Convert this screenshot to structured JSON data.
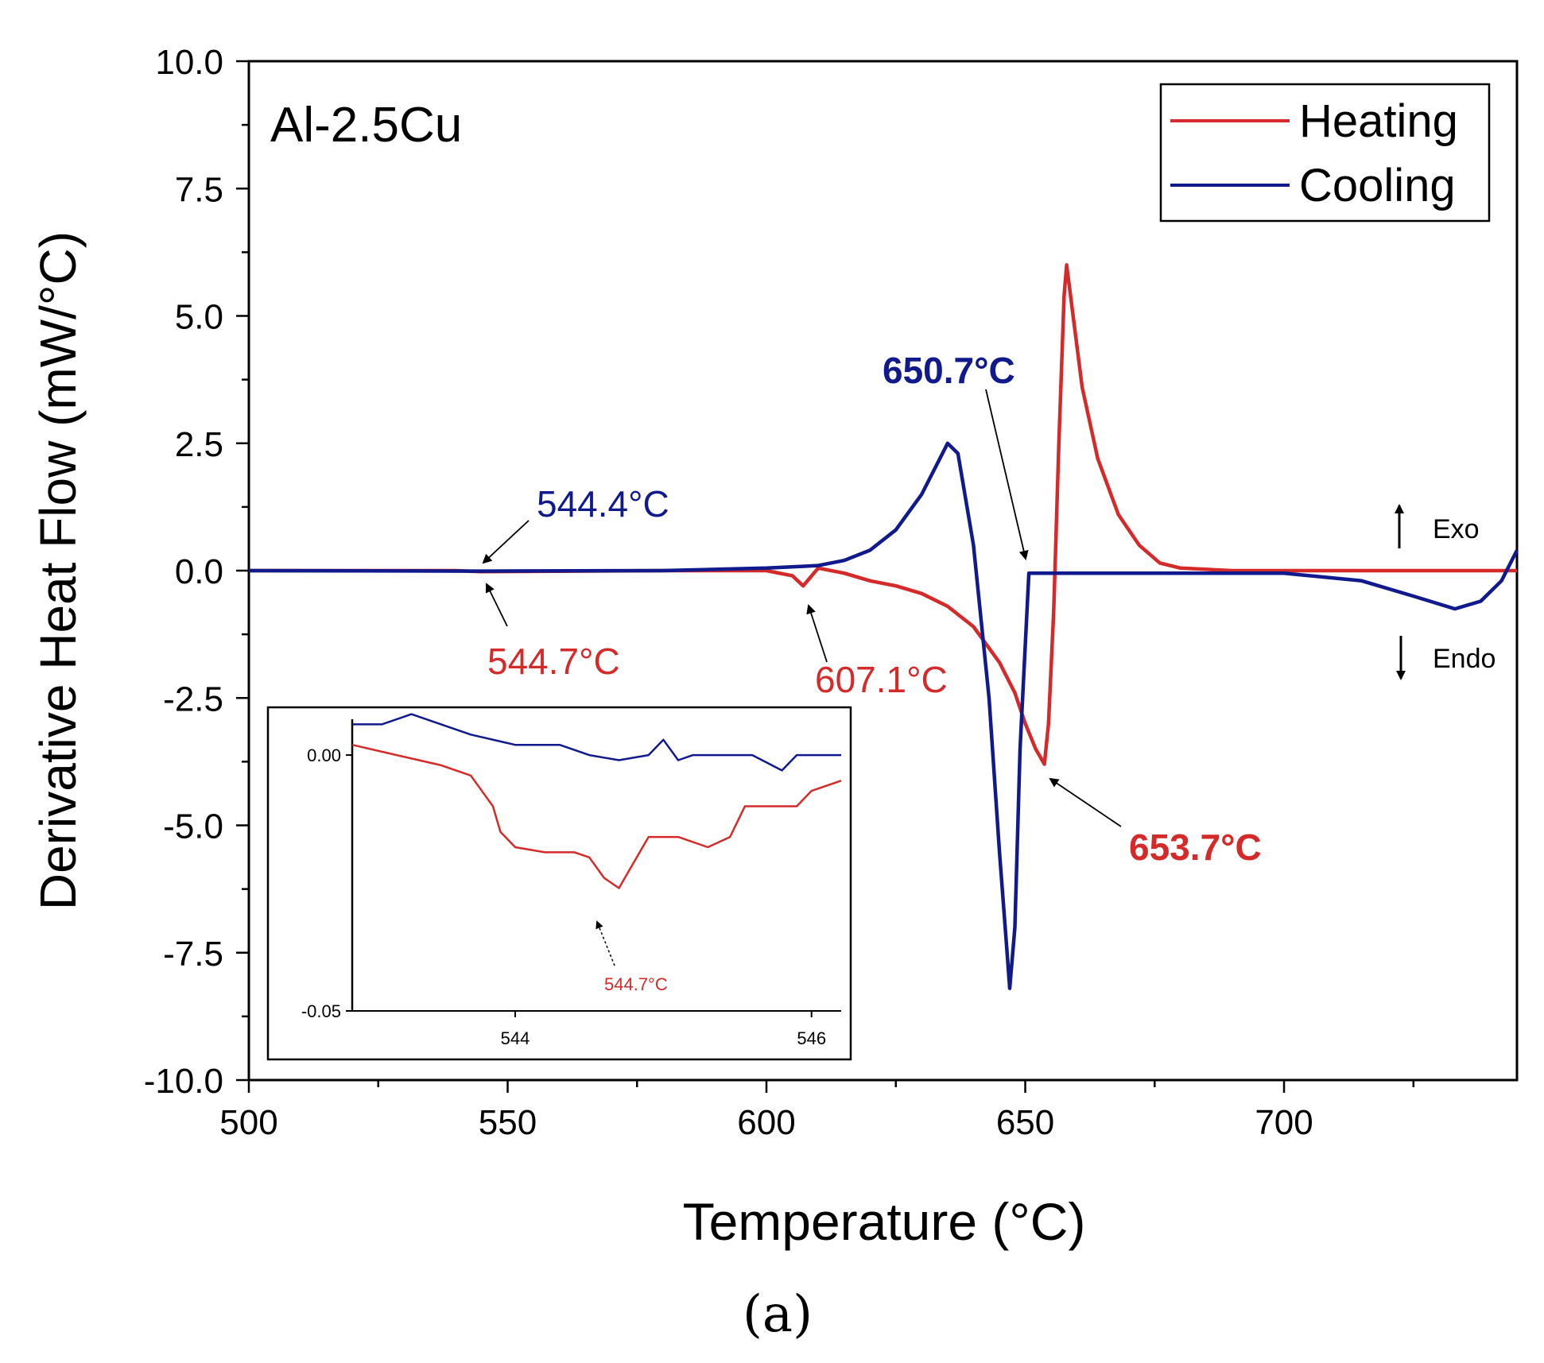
{
  "chart_data": {
    "type": "line",
    "sample_label": "Al-2.5Cu",
    "xlabel": "Temperature (°C)",
    "ylabel": "Derivative Heat Flow (mW/°C)",
    "xlim": [
      500,
      745
    ],
    "ylim": [
      -10,
      10
    ],
    "x_ticks": [
      500,
      550,
      600,
      650,
      700
    ],
    "x_tick_labels": [
      "500",
      "550",
      "600",
      "650",
      "700"
    ],
    "y_ticks": [
      10,
      7.5,
      5,
      2.5,
      0,
      -2.5,
      -5,
      -7.5,
      -10
    ],
    "y_tick_labels": [
      "10.0",
      "7.5",
      "5.0",
      "2.5",
      "0.0",
      "-2.5",
      "-5.0",
      "-7.5",
      "-10.0"
    ],
    "colors": {
      "heating": "#d42a2a",
      "cooling": "#101a8c"
    },
    "series": [
      {
        "name": "Heating",
        "color": "#d42a2a",
        "x": [
          500,
          540,
          544.7,
          580,
          600,
          605,
          607.1,
          610,
          615,
          620,
          625,
          630,
          635,
          640,
          645,
          648,
          650,
          652,
          653.7,
          654.5,
          655.5,
          656.5,
          657.5,
          658,
          659,
          661,
          664,
          668,
          672,
          676,
          680,
          690,
          700,
          745
        ],
        "y": [
          0.0,
          0.0,
          -0.02,
          0.0,
          0.0,
          -0.1,
          -0.3,
          0.05,
          -0.05,
          -0.2,
          -0.3,
          -0.45,
          -0.7,
          -1.1,
          -1.8,
          -2.4,
          -3.0,
          -3.5,
          -3.8,
          -3.0,
          -0.8,
          2.5,
          5.4,
          6.0,
          5.2,
          3.6,
          2.2,
          1.1,
          0.5,
          0.15,
          0.05,
          0.0,
          0.0,
          0.0
        ]
      },
      {
        "name": "Cooling",
        "color": "#101a8c",
        "x": [
          500,
          544.4,
          580,
          600,
          610,
          615,
          620,
          625,
          630,
          635,
          637,
          640,
          643,
          645,
          646.5,
          647,
          648,
          649,
          650.7,
          652,
          660,
          680,
          700,
          715,
          725,
          733,
          738,
          742,
          745
        ],
        "y": [
          0.0,
          -0.01,
          0.0,
          0.05,
          0.1,
          0.2,
          0.4,
          0.8,
          1.5,
          2.5,
          2.3,
          0.5,
          -2.5,
          -5.5,
          -7.5,
          -8.2,
          -7.0,
          -3.5,
          -0.05,
          -0.05,
          -0.05,
          -0.05,
          -0.05,
          -0.2,
          -0.5,
          -0.75,
          -0.6,
          -0.2,
          0.4
        ]
      }
    ],
    "legend": {
      "position": "top-right",
      "entries": [
        "Heating",
        "Cooling"
      ]
    },
    "annotations": [
      {
        "text": "544.4°C",
        "color": "#101a8c",
        "x": 544.4,
        "y": 0.0
      },
      {
        "text": "544.7°C",
        "color": "#d42a2a",
        "x": 544.7,
        "y": 0.0
      },
      {
        "text": "607.1°C",
        "color": "#d42a2a",
        "x": 607.1,
        "y": -0.3
      },
      {
        "text": "650.7°C",
        "color": "#101a8c",
        "x": 650.7,
        "y": -0.05
      },
      {
        "text": "653.7°C",
        "color": "#d42a2a",
        "x": 653.7,
        "y": -3.8
      }
    ],
    "direction_labels": {
      "up": "Exo",
      "down": "Endo"
    },
    "inset": {
      "type": "line",
      "xlim": [
        542.9,
        546.2
      ],
      "ylim": [
        -0.05,
        0.007
      ],
      "x_ticks": [
        544,
        546
      ],
      "x_tick_labels": [
        "544",
        "546"
      ],
      "y_ticks": [
        0.0,
        -0.05
      ],
      "y_tick_labels": [
        "0.00",
        "-0.05"
      ],
      "annotation": {
        "text": "544.7°C",
        "x": 544.7,
        "y": -0.027
      },
      "series": [
        {
          "name": "Heating",
          "color": "#d42a2a",
          "x": [
            542.9,
            543.2,
            543.5,
            543.7,
            543.85,
            543.9,
            544.0,
            544.2,
            544.4,
            544.5,
            544.6,
            544.7,
            544.8,
            544.9,
            545.1,
            545.3,
            545.45,
            545.55,
            545.7,
            545.9,
            546.0,
            546.2
          ],
          "y": [
            0.002,
            0.0,
            -0.002,
            -0.004,
            -0.01,
            -0.015,
            -0.018,
            -0.019,
            -0.019,
            -0.02,
            -0.024,
            -0.026,
            -0.021,
            -0.016,
            -0.016,
            -0.018,
            -0.016,
            -0.01,
            -0.01,
            -0.01,
            -0.007,
            -0.005
          ]
        },
        {
          "name": "Cooling",
          "color": "#101a8c",
          "x": [
            542.9,
            543.1,
            543.3,
            543.5,
            543.7,
            544.0,
            544.3,
            544.5,
            544.7,
            544.9,
            545.0,
            545.1,
            545.2,
            545.4,
            545.6,
            545.8,
            545.9,
            546.0,
            546.2
          ],
          "y": [
            0.006,
            0.006,
            0.008,
            0.006,
            0.004,
            0.002,
            0.002,
            0.0,
            -0.001,
            0.0,
            0.003,
            -0.001,
            0.0,
            0.0,
            0.0,
            -0.003,
            0.0,
            0.0,
            0.0
          ]
        }
      ]
    }
  },
  "figure_label": "(a)"
}
